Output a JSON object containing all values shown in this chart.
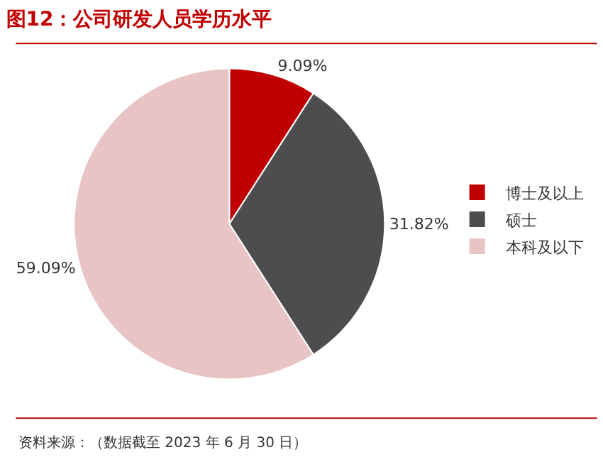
{
  "chart_data": {
    "type": "pie",
    "title": "图12：公司研发人员学历水平",
    "categories": [
      "博士及以上",
      "硕士",
      "本科及以下"
    ],
    "values": [
      9.09,
      31.82,
      59.09
    ],
    "colors": [
      "#c00000",
      "#4d4d4f",
      "#e8c4c4"
    ],
    "value_labels": [
      "9.09%",
      "31.82%",
      "59.09%"
    ],
    "legend": "right",
    "annotations": [
      "资料来源：（数据截至 2023 年 6 月 30 日）"
    ]
  }
}
